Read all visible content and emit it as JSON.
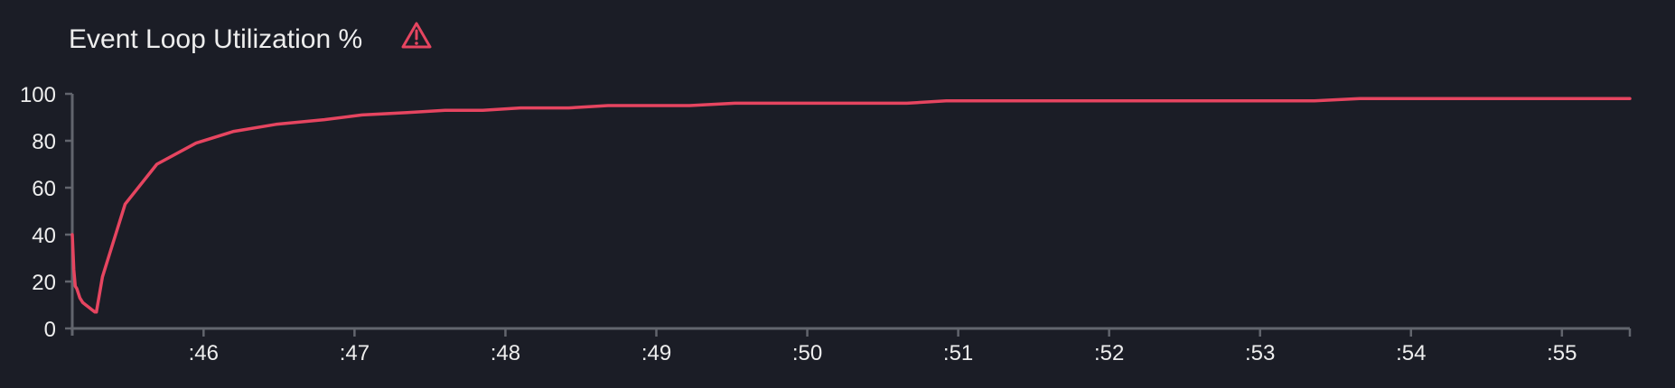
{
  "chart_data": {
    "type": "line",
    "title": "Event Loop Utilization %",
    "title_icon": "warning-triangle-icon",
    "xlabel": "",
    "ylabel": "",
    "xlim": [
      45.13,
      55.45
    ],
    "ylim": [
      0,
      100
    ],
    "grid": false,
    "legend": "none",
    "x_ticks": [
      46,
      47,
      48,
      49,
      50,
      51,
      52,
      53,
      54,
      55
    ],
    "x_tick_labels": [
      ":46",
      ":47",
      ":48",
      ":49",
      ":50",
      ":51",
      ":52",
      ":53",
      ":54",
      ":55"
    ],
    "y_ticks": [
      0,
      20,
      40,
      60,
      80,
      100
    ],
    "y_tick_labels": [
      "0",
      "20",
      "40",
      "60",
      "80",
      "100"
    ],
    "colors": {
      "series": "#e64560",
      "background": "#1b1d26",
      "text": "#eeeeee",
      "axis": "#62656d"
    },
    "series": [
      {
        "x": [
          45.13,
          45.14,
          45.15,
          45.16,
          45.18,
          45.2,
          45.22,
          45.24,
          45.26,
          45.28,
          45.29,
          45.33,
          45.48,
          45.69,
          45.95,
          46.2,
          46.48,
          46.8,
          47.05,
          47.35,
          47.6,
          47.85,
          48.1,
          48.42,
          48.68,
          48.95,
          49.22,
          49.52,
          49.8,
          50.1,
          50.4,
          50.66,
          50.92,
          51.2,
          51.5,
          51.8,
          52.1,
          52.4,
          52.7,
          53.0,
          53.36,
          53.66,
          54.0,
          54.3,
          54.6,
          54.9,
          55.2,
          55.45
        ],
        "y": [
          40,
          25,
          18,
          17,
          13,
          11,
          10,
          9,
          8,
          7,
          7,
          22,
          53,
          70,
          79,
          84,
          87,
          89,
          91,
          92,
          93,
          93,
          94,
          94,
          95,
          95,
          95,
          96,
          96,
          96,
          96,
          96,
          97,
          97,
          97,
          97,
          97,
          97,
          97,
          97,
          97,
          98,
          98,
          98,
          98,
          98,
          98,
          98
        ]
      }
    ]
  }
}
